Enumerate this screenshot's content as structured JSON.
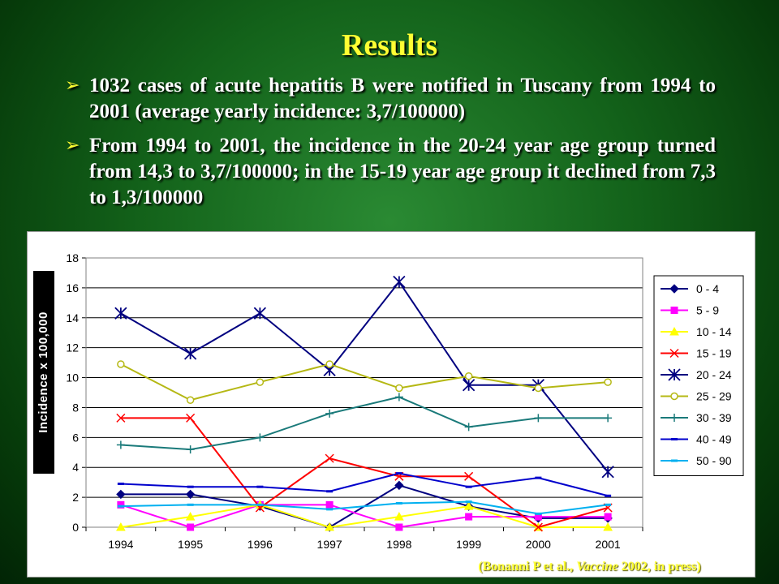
{
  "slide": {
    "title": "Results",
    "bullets": [
      "1032 cases of acute hepatitis B were notified in Tuscany from 1994 to 2001 (average yearly incidence: 3,7/100000)",
      "From 1994 to 2001, the incidence in the 20-24 year age group turned from 14,3 to 3,7/100000; in the 15-19 year age group it declined from 7,3 to 1,3/100000"
    ],
    "citation": {
      "prefix": "(Bonanni P et al., ",
      "journal": "Vaccine",
      "suffix": " 2002, in press)"
    }
  },
  "chart_data": {
    "type": "line",
    "title": "",
    "xlabel": "",
    "ylabel": "Incidence x 100,000",
    "x": [
      "1994",
      "1995",
      "1996",
      "1997",
      "1998",
      "1999",
      "2000",
      "2001"
    ],
    "ylim": [
      0,
      18
    ],
    "yticks": [
      0,
      2,
      4,
      6,
      8,
      10,
      12,
      14,
      16,
      18
    ],
    "grid": "horizontal",
    "legend": "right",
    "series": [
      {
        "name": "0 - 4",
        "color": "#000080",
        "marker": "diamond",
        "values": [
          2.2,
          2.2,
          1.4,
          0.0,
          2.8,
          1.4,
          0.6,
          0.6
        ]
      },
      {
        "name": "5 - 9",
        "color": "#ff00ff",
        "marker": "square",
        "values": [
          1.5,
          0.0,
          1.5,
          1.5,
          0.0,
          0.7,
          0.7,
          0.7
        ]
      },
      {
        "name": "10 - 14",
        "color": "#ffff00",
        "marker": "triangle",
        "values": [
          0.0,
          0.7,
          1.5,
          0.0,
          0.7,
          1.4,
          0.0,
          0.0
        ]
      },
      {
        "name": "15 - 19",
        "color": "#ff0000",
        "marker": "x",
        "values": [
          7.3,
          7.3,
          1.3,
          4.6,
          3.4,
          3.4,
          0.0,
          1.3
        ]
      },
      {
        "name": "20 - 24",
        "color": "#000080",
        "marker": "star",
        "values": [
          14.3,
          11.6,
          14.3,
          10.5,
          16.4,
          9.5,
          9.5,
          3.7
        ]
      },
      {
        "name": "25 - 29",
        "color": "#b5b814",
        "marker": "circle",
        "values": [
          10.9,
          8.5,
          9.7,
          10.9,
          9.3,
          10.1,
          9.3,
          9.7
        ]
      },
      {
        "name": "30 - 39",
        "color": "#1a7a7a",
        "marker": "plus",
        "values": [
          5.5,
          5.2,
          6.0,
          7.6,
          8.7,
          6.7,
          7.3,
          7.3
        ]
      },
      {
        "name": "40 - 49",
        "color": "#0000cc",
        "marker": "dash",
        "values": [
          2.9,
          2.7,
          2.7,
          2.4,
          3.6,
          2.7,
          3.3,
          2.1
        ]
      },
      {
        "name": "50 - 90",
        "color": "#00b0f0",
        "marker": "dash",
        "values": [
          1.4,
          1.5,
          1.5,
          1.2,
          1.6,
          1.7,
          0.9,
          1.5
        ]
      }
    ]
  }
}
